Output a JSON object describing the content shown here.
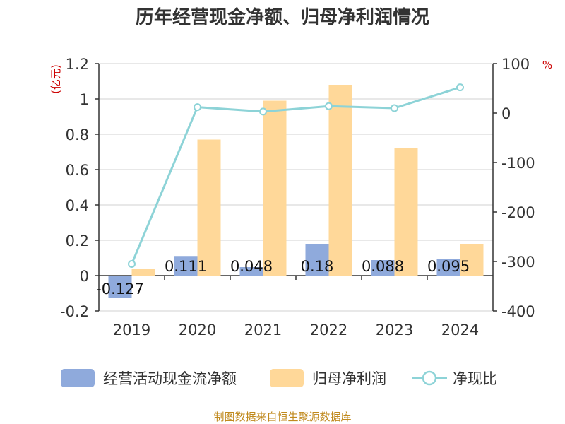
{
  "chart_data": {
    "type": "bar",
    "title": "历年经营现金净额、归母净利润情况",
    "categories": [
      "2019",
      "2020",
      "2021",
      "2022",
      "2023",
      "2024"
    ],
    "left_axis": {
      "unit": "(亿元)",
      "ylim": [
        -0.2,
        1.2
      ],
      "ticks": [
        -0.2,
        0,
        0.2,
        0.4,
        0.6,
        0.8,
        1,
        1.2
      ]
    },
    "right_axis": {
      "unit": "%",
      "ylim": [
        -400,
        100
      ],
      "ticks": [
        -400,
        -300,
        -200,
        -100,
        0,
        100
      ]
    },
    "series": [
      {
        "name": "经营活动现金流净额",
        "type": "bar",
        "axis": "left",
        "color": "#8faadc",
        "values": [
          -0.127,
          0.111,
          0.048,
          0.18,
          0.088,
          0.095
        ],
        "labels": [
          "-0.127",
          "0.111",
          "0.048",
          "0.18",
          "0.088",
          "0.095"
        ]
      },
      {
        "name": "归母净利润",
        "type": "bar",
        "axis": "left",
        "color": "#ffd899",
        "values": [
          0.04,
          0.77,
          0.99,
          1.08,
          0.72,
          0.18
        ]
      },
      {
        "name": "净现比",
        "type": "line",
        "axis": "right",
        "color": "#8dd3d7",
        "values": [
          -305,
          12,
          3,
          14,
          10,
          52
        ]
      }
    ],
    "source": "制图数据来自恒生聚源数据库"
  }
}
